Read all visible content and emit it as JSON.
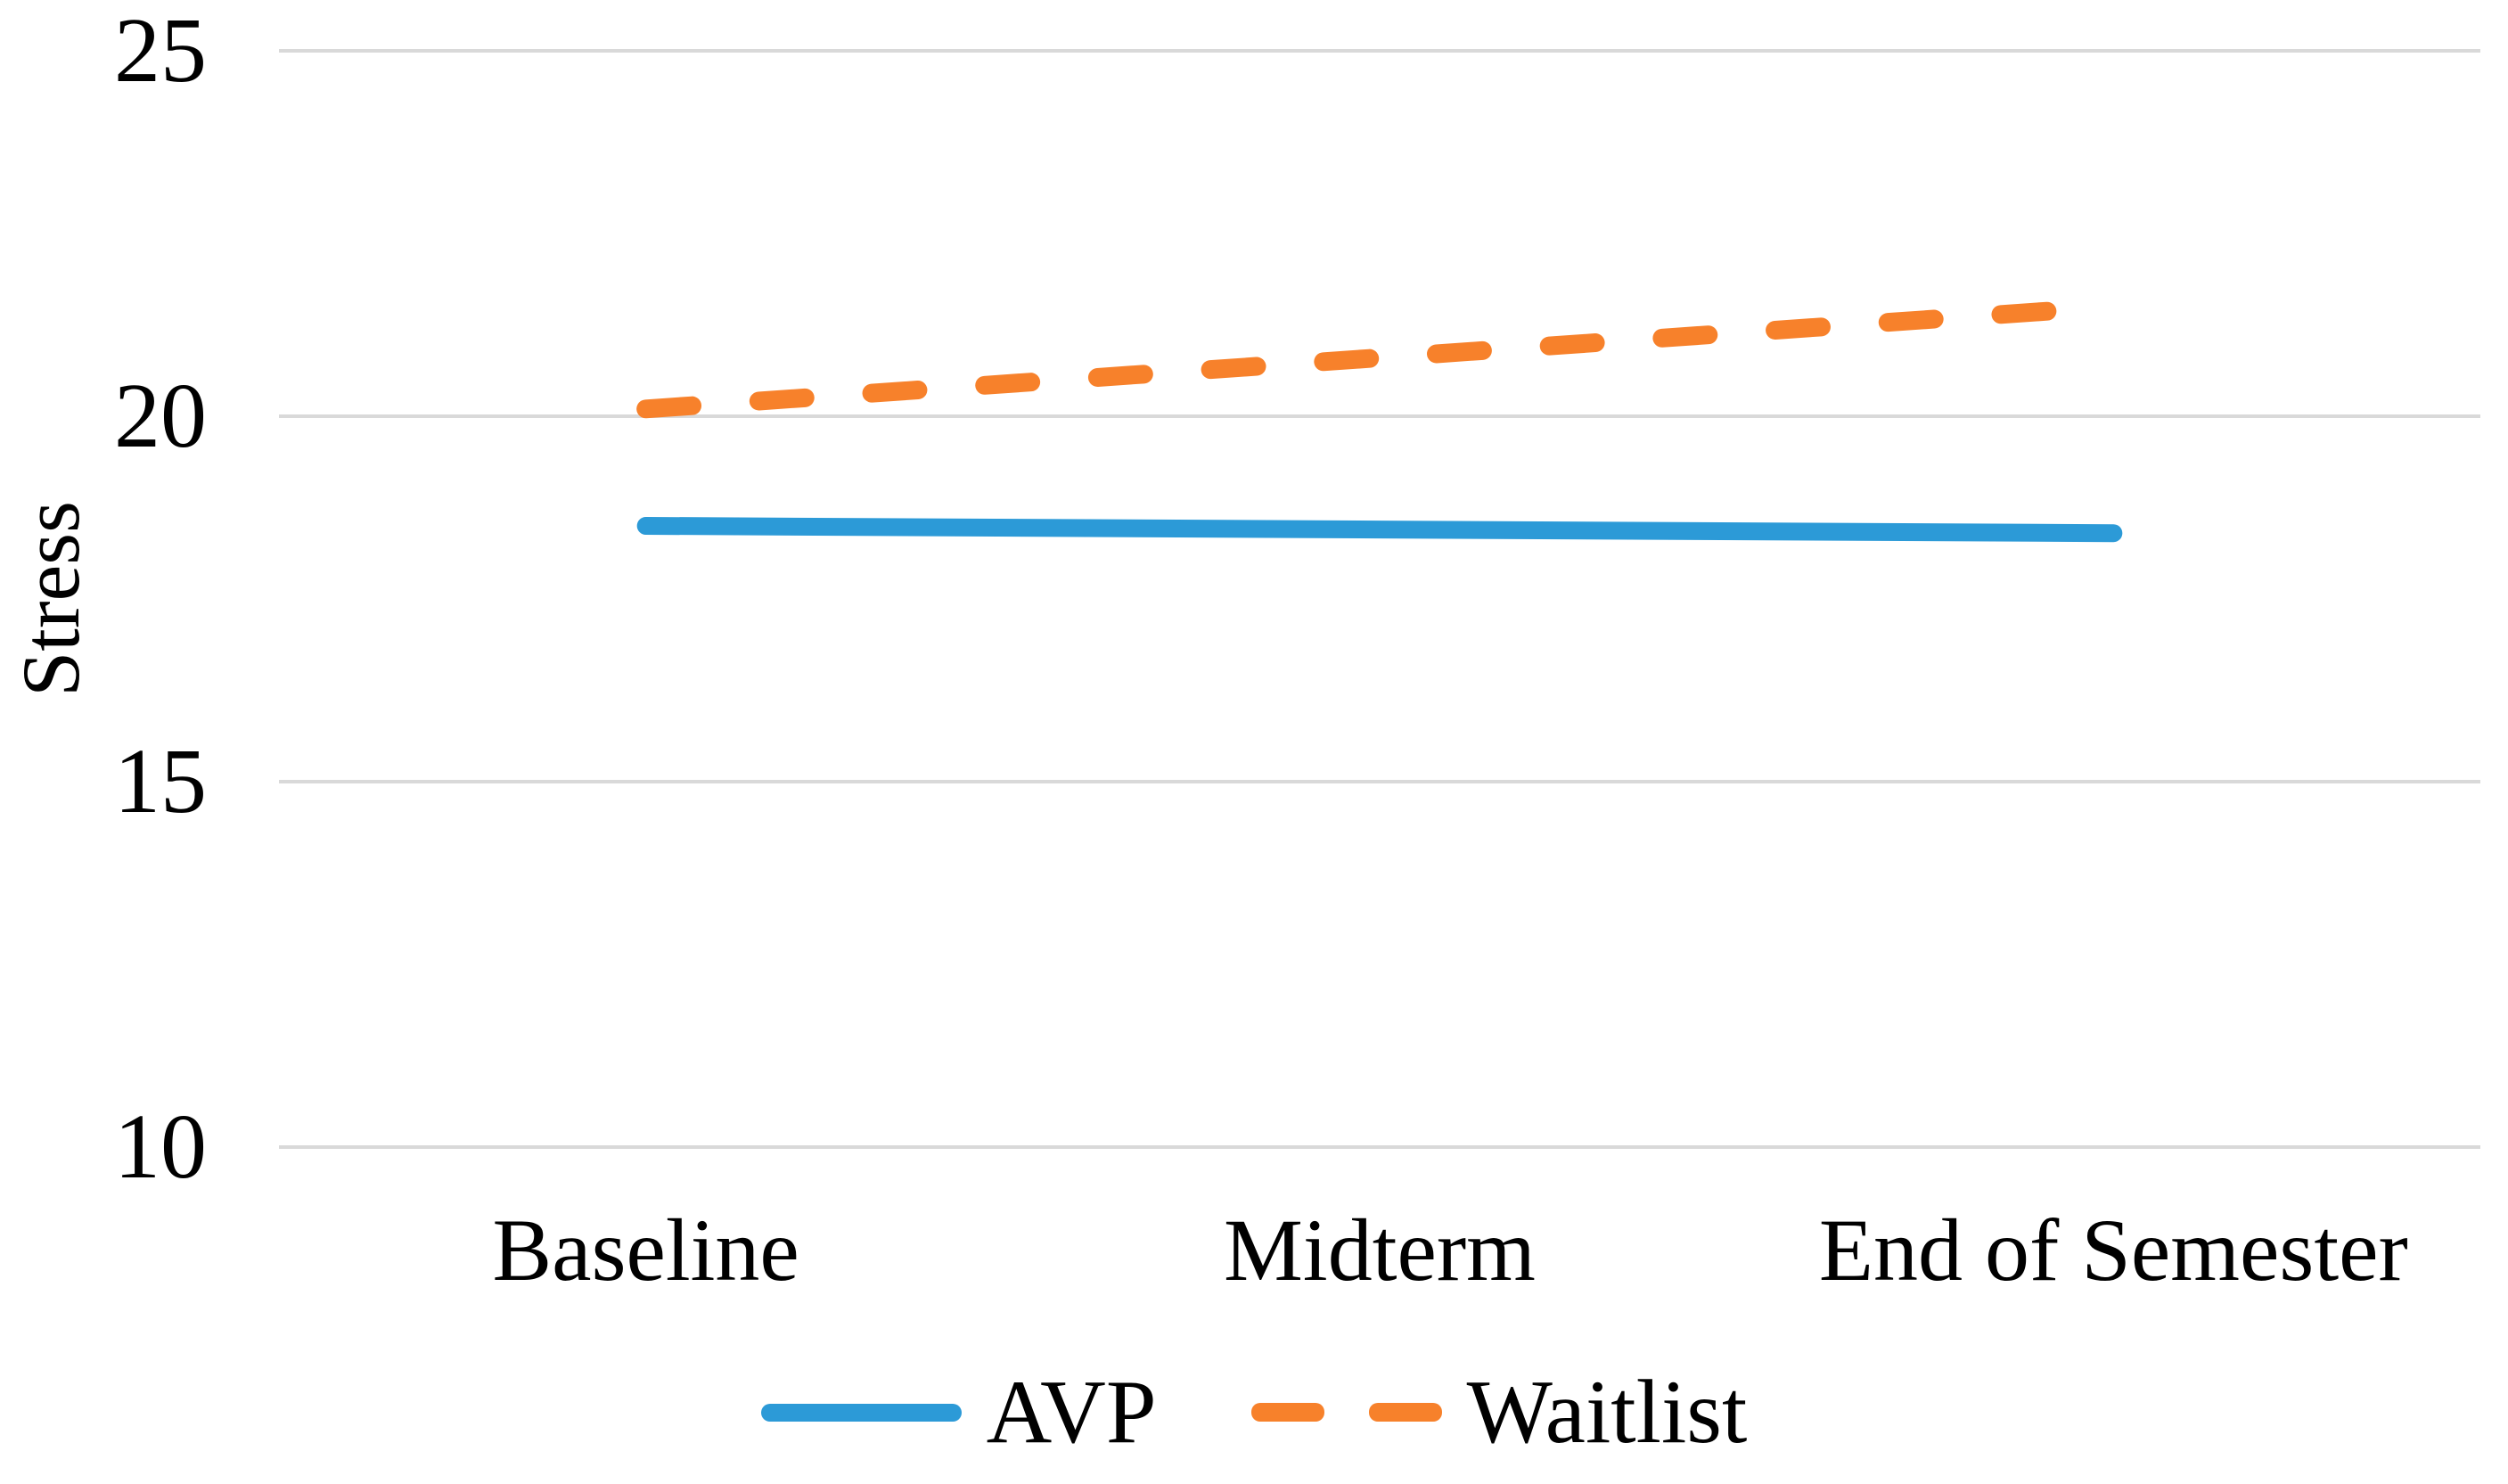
{
  "chart_data": {
    "type": "line",
    "title": "",
    "ylabel": "Stress",
    "xlabel": "",
    "categories": [
      "Baseline",
      "Midterm",
      "End of Semester"
    ],
    "series": [
      {
        "name": "AVP",
        "values": [
          18.5,
          18.45,
          18.4
        ],
        "color": "#2C9AD7",
        "line_style": "solid"
      },
      {
        "name": "Waitlist",
        "values": [
          20.1,
          20.8,
          21.5
        ],
        "color": "#F7812B",
        "line_style": "dashed"
      }
    ],
    "ylim": [
      10,
      25
    ],
    "yticks": [
      25,
      20,
      15,
      10
    ],
    "grid": "horizontal",
    "gridline_color": "#D9D9D9",
    "legend_position": "bottom",
    "background_color": "#FFFFFF",
    "text_color": "#000000"
  }
}
